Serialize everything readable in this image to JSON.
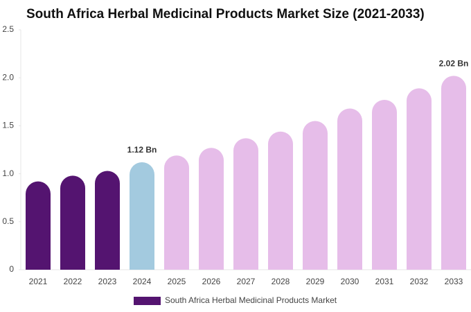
{
  "chart_data": {
    "type": "bar",
    "title": "South Africa Herbal Medicinal Products Market Size (2021-2033)",
    "categories": [
      "2021",
      "2022",
      "2023",
      "2024",
      "2025",
      "2026",
      "2027",
      "2028",
      "2029",
      "2030",
      "2031",
      "2032",
      "2033"
    ],
    "series": [
      {
        "name": "South Africa Herbal Medicinal Products Market",
        "color": "#541470",
        "colors": [
          "#541470",
          "#541470",
          "#541470",
          "#a3cadf",
          "#e6bde9",
          "#e6bde9",
          "#e6bde9",
          "#e6bde9",
          "#e6bde9",
          "#e6bde9",
          "#e6bde9",
          "#e6bde9",
          "#e6bde9"
        ],
        "values": [
          0.92,
          0.98,
          1.03,
          1.12,
          1.19,
          1.27,
          1.37,
          1.44,
          1.55,
          1.68,
          1.77,
          1.89,
          2.02
        ],
        "value_labels": [
          null,
          null,
          null,
          "1.12 Bn",
          null,
          null,
          null,
          null,
          null,
          null,
          null,
          null,
          "2.02 Bn"
        ]
      }
    ],
    "ylim": [
      0,
      2.5
    ],
    "yticks": [
      0,
      0.5,
      {
        "value": 1,
        "label": "1.0"
      },
      1.5,
      {
        "value": 2,
        "label": "2.0"
      },
      2.5
    ]
  }
}
